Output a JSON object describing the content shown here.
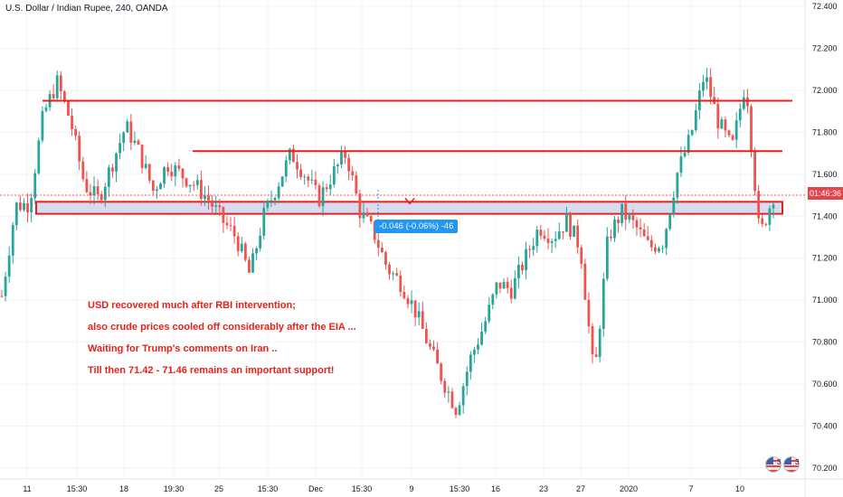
{
  "header": {
    "title": "U.S. Dollar / Indian Rupee, 240, OANDA"
  },
  "price_axis": {
    "ticks": [
      "72.400",
      "72.200",
      "72.000",
      "71.800",
      "71.600",
      "71.400",
      "71.200",
      "71.000",
      "70.800",
      "70.600",
      "70.400",
      "70.200"
    ],
    "current_time_label": "01:46:36"
  },
  "time_axis": {
    "ticks": [
      "11",
      "15:30",
      "18",
      "19:30",
      "25",
      "15:30",
      "Dec",
      "15:30",
      "9",
      "15:30",
      "16",
      "23",
      "27",
      "2020",
      "7",
      "10"
    ]
  },
  "annotations": [
    "USD recovered much after RBI intervention;",
    "also crude prices cooled off considerably after the EIA ...",
    "Waiting for Trump's comments on Iran ..",
    "Till then 71.42 - 71.46 remains an important support!"
  ],
  "measure": {
    "label": "-0.046 (-0.06%) -46"
  },
  "events": {
    "count_a": "3",
    "count_b": "3"
  },
  "colors": {
    "up": "#26a69a",
    "down": "#ef5350",
    "resistance": "#e8201a",
    "support_fill": "#d7dcf0",
    "measure": "#2196f3"
  },
  "chart_data": {
    "type": "candlestick",
    "title": "U.S. Dollar / Indian Rupee, 240, OANDA",
    "ylim": [
      70.18,
      72.44
    ],
    "current_price": 71.5,
    "horizontal_levels": [
      71.95,
      71.71
    ],
    "support_zone": [
      71.42,
      71.46
    ],
    "path": [
      71.02,
      71.45,
      71.46,
      71.88,
      72.04,
      71.85,
      71.55,
      71.48,
      71.65,
      71.83,
      71.7,
      71.52,
      71.65,
      71.6,
      71.55,
      71.48,
      71.38,
      71.3,
      71.12,
      71.4,
      71.55,
      71.7,
      71.6,
      71.48,
      71.6,
      71.7,
      71.42,
      71.32,
      71.15,
      71.08,
      70.95,
      70.78,
      70.62,
      70.48,
      70.72,
      70.88,
      71.08,
      71.05,
      71.2,
      71.35,
      71.3,
      71.38,
      71.25,
      70.62,
      71.3,
      71.42,
      71.35,
      71.25,
      71.28,
      71.6,
      71.78,
      72.08,
      71.85,
      71.72,
      72.05,
      71.3,
      71.5
    ]
  }
}
